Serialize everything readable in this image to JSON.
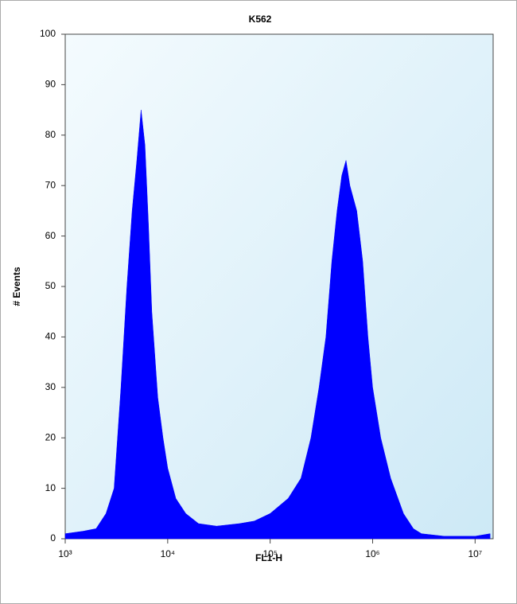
{
  "chart_data": {
    "type": "area",
    "title": "K562",
    "xlabel": "FL1-H",
    "ylabel": "# Events",
    "xscale": "log",
    "x": [
      1000,
      1500,
      2000,
      2500,
      3000,
      3500,
      4000,
      4500,
      5000,
      5500,
      6000,
      6500,
      7000,
      8000,
      9000,
      10000,
      12000,
      15000,
      20000,
      30000,
      50000,
      70000,
      100000,
      150000,
      200000,
      250000,
      300000,
      350000,
      400000,
      450000,
      500000,
      550000,
      600000,
      700000,
      800000,
      900000,
      1000000,
      1200000,
      1500000,
      2000000,
      2500000,
      3000000,
      5000000,
      10000000,
      14000000
    ],
    "series": [
      {
        "color": "#0000ff",
        "values": [
          1,
          1.5,
          2,
          5,
          10,
          30,
          50,
          65,
          75,
          85,
          78,
          62,
          45,
          28,
          20,
          14,
          8,
          5,
          3,
          2.5,
          3,
          3.5,
          5,
          8,
          12,
          20,
          30,
          40,
          55,
          65,
          72,
          75,
          70,
          65,
          55,
          40,
          30,
          20,
          12,
          5,
          2,
          1,
          0.5,
          0.5,
          1
        ]
      }
    ],
    "xlim": [
      1000,
      15000000
    ],
    "xticks": [
      {
        "value": 1000,
        "label": "10³"
      },
      {
        "value": 10000,
        "label": "10⁴"
      },
      {
        "value": 100000,
        "label": "10⁵"
      },
      {
        "value": 1000000,
        "label": "10⁶"
      },
      {
        "value": 10000000,
        "label": "10⁷"
      }
    ],
    "ylim": [
      0,
      100
    ],
    "yticks": [
      0,
      10,
      20,
      30,
      40,
      50,
      60,
      70,
      80,
      90,
      100
    ]
  }
}
